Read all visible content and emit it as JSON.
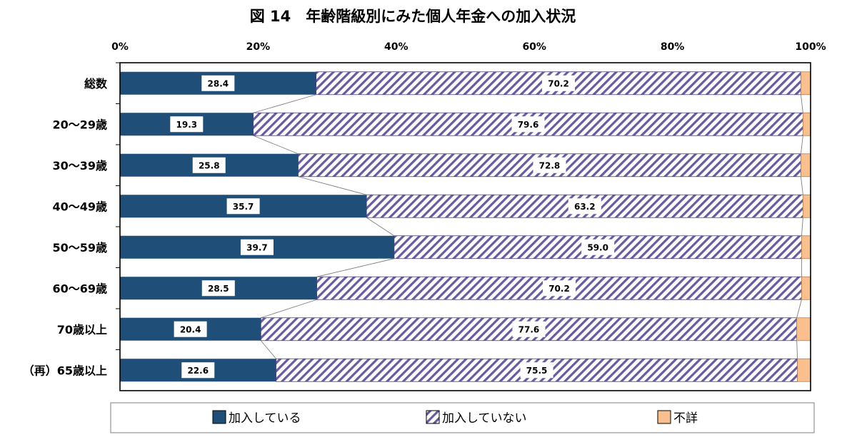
{
  "chart_data": {
    "type": "bar",
    "orientation": "horizontal",
    "stacked": "percent",
    "title": "図 14　年齢階級別にみた個人年金への加入状況",
    "xlabel": "",
    "ylabel": "",
    "xlim": [
      0,
      100
    ],
    "x_ticks": [
      "0%",
      "20%",
      "40%",
      "60%",
      "80%",
      "100%"
    ],
    "categories": [
      "総数",
      "20～29歳",
      "30～39歳",
      "40～49歳",
      "50～59歳",
      "60～69歳",
      "70歳以上",
      "（再）65歳以上"
    ],
    "series": [
      {
        "name": "加入している",
        "color": "#1f4e79",
        "pattern": "solid",
        "values": [
          28.4,
          19.3,
          25.8,
          35.7,
          39.7,
          28.5,
          20.4,
          22.6
        ]
      },
      {
        "name": "加入していない",
        "color": "#6a5a9e",
        "pattern": "diagonal-hatch",
        "values": [
          70.2,
          79.6,
          72.8,
          63.2,
          59.0,
          70.2,
          77.6,
          75.5
        ]
      },
      {
        "name": "不詳",
        "color": "#f9bf8f",
        "pattern": "solid",
        "values": [
          1.4,
          1.1,
          1.4,
          1.1,
          1.3,
          1.3,
          2.0,
          1.9
        ]
      }
    ],
    "data_labels": {
      "加入している": [
        "28.4",
        "19.3",
        "25.8",
        "35.7",
        "39.7",
        "28.5",
        "20.4",
        "22.6"
      ],
      "加入していない": [
        "70.2",
        "79.6",
        "72.8",
        "63.2",
        "59.0",
        "70.2",
        "77.6",
        "75.5"
      ]
    },
    "series_lines": true,
    "legend": {
      "placement": "bottom",
      "items": [
        "加入している",
        "加入していない",
        "不詳"
      ]
    },
    "grid": false
  }
}
